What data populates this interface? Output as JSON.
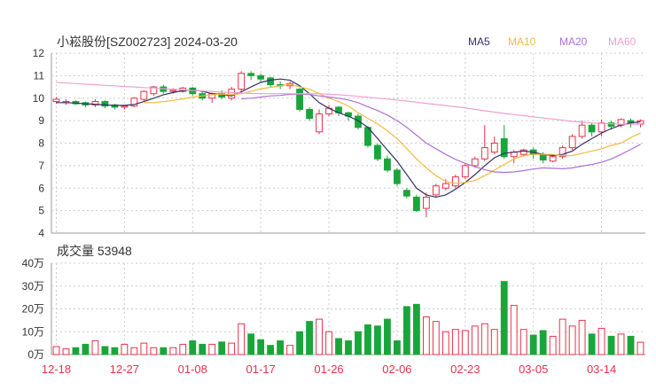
{
  "header": {
    "title": "小崧股份[SZ002723] 2024-03-20"
  },
  "legend": [
    {
      "label": "MA5",
      "color": "#333366"
    },
    {
      "label": "MA10",
      "color": "#f5b942"
    },
    {
      "label": "MA20",
      "color": "#b070d8"
    },
    {
      "label": "MA60",
      "color": "#f0a0d0"
    }
  ],
  "colors": {
    "up": "#e8314a",
    "down": "#1aa53a",
    "grid": "#cccccc"
  },
  "chart_data": [
    {
      "type": "candlestick",
      "title": "小崧股份[SZ002723] 2024-03-20",
      "ylim": [
        4,
        12
      ],
      "yticks": [
        "12",
        "11",
        "10",
        "9",
        "8",
        "7",
        "6",
        "5",
        "4"
      ],
      "x_tick_labels": [
        "12-18",
        "12-27",
        "01-08",
        "01-17",
        "01-26",
        "02-06",
        "02-23",
        "03-05",
        "03-14"
      ],
      "x_tick_index": [
        0,
        7,
        14,
        21,
        28,
        35,
        42,
        49,
        56
      ],
      "candles": [
        [
          9.85,
          9.95,
          9.75,
          10.05
        ],
        [
          9.8,
          9.85,
          9.7,
          9.95
        ],
        [
          9.85,
          9.75,
          9.7,
          9.9
        ],
        [
          9.8,
          9.7,
          9.6,
          9.85
        ],
        [
          9.7,
          9.85,
          9.6,
          9.95
        ],
        [
          9.85,
          9.65,
          9.55,
          9.9
        ],
        [
          9.7,
          9.6,
          9.5,
          9.75
        ],
        [
          9.6,
          9.65,
          9.5,
          9.7
        ],
        [
          9.65,
          10.0,
          9.6,
          10.05
        ],
        [
          9.95,
          10.3,
          9.85,
          10.35
        ],
        [
          10.2,
          10.5,
          10.1,
          10.55
        ],
        [
          10.5,
          10.3,
          10.2,
          10.6
        ],
        [
          10.3,
          10.35,
          10.2,
          10.45
        ],
        [
          10.3,
          10.45,
          10.25,
          10.5
        ],
        [
          10.45,
          10.2,
          10.1,
          10.5
        ],
        [
          10.2,
          10.0,
          9.9,
          10.3
        ],
        [
          10.0,
          10.2,
          9.8,
          10.25
        ],
        [
          10.2,
          10.05,
          9.95,
          10.35
        ],
        [
          10.0,
          10.4,
          9.9,
          10.5
        ],
        [
          10.4,
          11.1,
          10.3,
          11.2
        ],
        [
          11.1,
          11.0,
          10.8,
          11.2
        ],
        [
          11.0,
          10.85,
          10.7,
          11.1
        ],
        [
          10.9,
          10.6,
          10.5,
          10.95
        ],
        [
          10.6,
          10.55,
          10.4,
          10.75
        ],
        [
          10.55,
          10.65,
          10.4,
          10.75
        ],
        [
          10.4,
          9.5,
          9.4,
          10.45
        ],
        [
          9.5,
          9.1,
          9.0,
          9.6
        ],
        [
          8.5,
          9.3,
          8.4,
          9.5
        ],
        [
          9.3,
          9.55,
          9.2,
          9.7
        ],
        [
          9.6,
          9.35,
          9.2,
          9.65
        ],
        [
          9.35,
          9.2,
          9.0,
          9.4
        ],
        [
          9.2,
          8.7,
          8.6,
          9.3
        ],
        [
          8.7,
          7.9,
          7.8,
          8.75
        ],
        [
          7.9,
          7.3,
          7.2,
          8.0
        ],
        [
          7.3,
          6.8,
          6.7,
          7.45
        ],
        [
          6.8,
          6.2,
          6.1,
          6.9
        ],
        [
          5.9,
          5.65,
          5.55,
          6.0
        ],
        [
          5.6,
          5.0,
          4.95,
          5.7
        ],
        [
          5.1,
          5.6,
          4.7,
          5.8
        ],
        [
          5.7,
          6.1,
          5.6,
          6.2
        ],
        [
          6.0,
          6.2,
          5.9,
          6.4
        ],
        [
          6.1,
          6.5,
          6.0,
          6.6
        ],
        [
          6.5,
          7.0,
          6.4,
          7.1
        ],
        [
          7.0,
          7.3,
          6.9,
          7.4
        ],
        [
          7.3,
          7.8,
          7.2,
          8.8
        ],
        [
          7.6,
          8.0,
          7.5,
          8.3
        ],
        [
          8.2,
          7.4,
          7.3,
          8.8
        ],
        [
          7.4,
          7.6,
          7.1,
          7.7
        ],
        [
          7.5,
          7.7,
          7.4,
          7.75
        ],
        [
          7.7,
          7.5,
          7.3,
          7.8
        ],
        [
          7.5,
          7.25,
          7.1,
          7.6
        ],
        [
          7.2,
          7.4,
          7.15,
          7.5
        ],
        [
          7.4,
          7.8,
          7.3,
          7.9
        ],
        [
          7.8,
          8.3,
          7.7,
          8.4
        ],
        [
          8.3,
          8.8,
          8.2,
          9.0
        ],
        [
          8.8,
          8.5,
          8.3,
          8.9
        ],
        [
          8.5,
          8.9,
          8.3,
          9.05
        ],
        [
          8.9,
          8.75,
          8.6,
          9.0
        ],
        [
          8.8,
          9.05,
          8.7,
          9.1
        ],
        [
          9.0,
          8.9,
          8.7,
          9.1
        ],
        [
          8.85,
          9.0,
          8.7,
          9.05
        ]
      ],
      "ma": {
        "MA5": [
          9.8,
          9.8,
          9.78,
          9.75,
          9.73,
          9.7,
          9.68,
          9.68,
          9.72,
          9.85,
          10.0,
          10.15,
          10.25,
          10.33,
          10.38,
          10.3,
          10.2,
          10.17,
          10.1,
          10.28,
          10.5,
          10.7,
          10.8,
          10.85,
          10.8,
          10.55,
          10.2,
          9.8,
          9.55,
          9.35,
          9.2,
          9.0,
          8.7,
          8.2,
          7.7,
          7.2,
          6.6,
          6.0,
          5.7,
          5.6,
          5.7,
          5.95,
          6.25,
          6.6,
          7.0,
          7.35,
          7.55,
          7.6,
          7.65,
          7.6,
          7.5,
          7.45,
          7.5,
          7.65,
          7.95,
          8.2,
          8.45,
          8.65,
          8.8,
          8.9,
          8.95
        ],
        "MA10": [
          null,
          null,
          null,
          null,
          null,
          null,
          null,
          null,
          null,
          9.8,
          9.8,
          9.85,
          9.9,
          9.97,
          10.05,
          10.1,
          10.15,
          10.18,
          10.15,
          10.2,
          10.3,
          10.42,
          10.48,
          10.55,
          10.62,
          10.5,
          10.4,
          10.2,
          10.0,
          9.85,
          9.65,
          9.35,
          9.1,
          8.85,
          8.55,
          8.2,
          7.75,
          7.3,
          6.9,
          6.55,
          6.3,
          6.2,
          6.25,
          6.35,
          6.55,
          6.8,
          7.05,
          7.3,
          7.45,
          7.5,
          7.5,
          7.5,
          7.45,
          7.45,
          7.55,
          7.65,
          7.75,
          7.9,
          8.0,
          8.25,
          8.45
        ],
        "MA20": [
          null,
          null,
          null,
          null,
          null,
          null,
          null,
          null,
          null,
          null,
          null,
          null,
          null,
          null,
          null,
          null,
          null,
          null,
          null,
          9.97,
          10.0,
          10.05,
          10.1,
          10.12,
          10.17,
          10.18,
          10.16,
          10.1,
          10.05,
          10.0,
          9.92,
          9.8,
          9.62,
          9.45,
          9.25,
          9.0,
          8.7,
          8.35,
          8.0,
          7.75,
          7.5,
          7.28,
          7.1,
          6.95,
          6.82,
          6.72,
          6.7,
          6.72,
          6.78,
          6.85,
          6.9,
          6.88,
          6.86,
          6.9,
          6.98,
          7.05,
          7.15,
          7.3,
          7.5,
          7.72,
          7.95
        ],
        "MA60": [
          10.7,
          10.67,
          10.65,
          10.62,
          10.6,
          10.57,
          10.55,
          10.52,
          10.5,
          10.47,
          10.45,
          10.42,
          10.4,
          10.37,
          10.35,
          10.32,
          10.3,
          10.27,
          10.25,
          10.23,
          10.21,
          10.2,
          10.2,
          10.2,
          10.2,
          10.2,
          10.2,
          10.2,
          10.17,
          10.15,
          10.12,
          10.08,
          10.04,
          10.0,
          9.96,
          9.92,
          9.87,
          9.82,
          9.77,
          9.72,
          9.67,
          9.62,
          9.56,
          9.5,
          9.44,
          9.38,
          9.32,
          9.27,
          9.22,
          9.17,
          9.12,
          9.07,
          9.02,
          8.97,
          8.93,
          8.9,
          8.88,
          8.86,
          8.84,
          8.84,
          8.84
        ]
      }
    },
    {
      "type": "bar",
      "title": "成交量 53948",
      "ylim": [
        0,
        40
      ],
      "yticks": [
        "40万",
        "30万",
        "20万",
        "10万",
        "0万"
      ],
      "unit": "万",
      "values": [
        3.5,
        2.5,
        3,
        4.5,
        6,
        3.5,
        3,
        4.5,
        3,
        5,
        3,
        3,
        3,
        4.5,
        6,
        4.5,
        4.5,
        5.5,
        5,
        13.5,
        9,
        6.5,
        4,
        6,
        4,
        10,
        14.5,
        15.5,
        10,
        7,
        6,
        10,
        13,
        12.5,
        15.5,
        6,
        21,
        22,
        16.5,
        14.5,
        10,
        11,
        10.5,
        12.5,
        13.5,
        11,
        32,
        21.5,
        11,
        8.5,
        10.5,
        8,
        15.5,
        12.5,
        15,
        9,
        11.5,
        8,
        9,
        8,
        5.3948
      ]
    }
  ]
}
